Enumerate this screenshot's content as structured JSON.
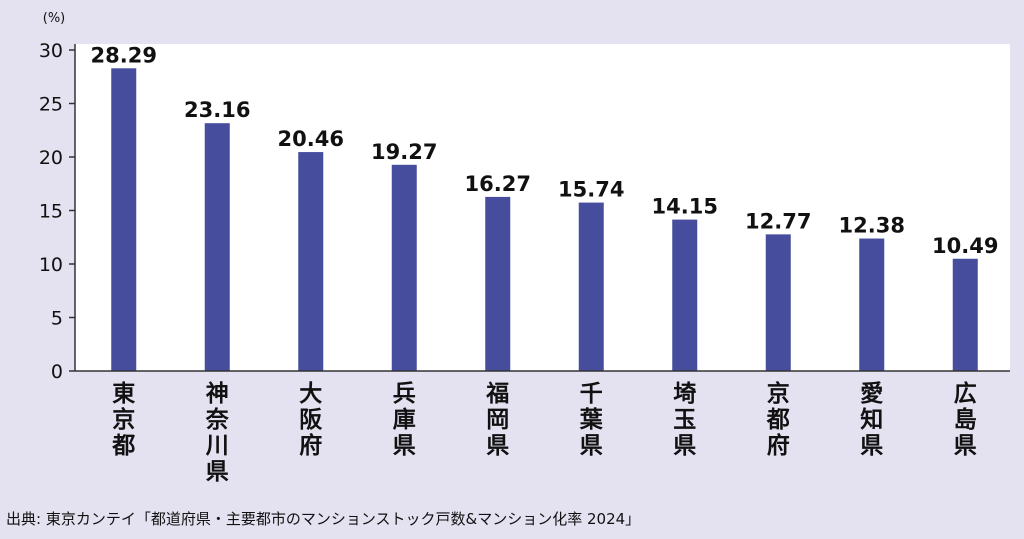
{
  "chart_data": {
    "type": "bar",
    "title": "",
    "xlabel": "",
    "ylabel": "(%)",
    "ylim": [
      0,
      30
    ],
    "yticks": [
      0,
      5,
      10,
      15,
      20,
      25,
      30
    ],
    "grid": false,
    "legend": "none",
    "categories": [
      "東京都",
      "神奈川県",
      "大阪府",
      "兵庫県",
      "福岡県",
      "千葉県",
      "埼玉県",
      "京都府",
      "愛知県",
      "広島県"
    ],
    "values": [
      28.29,
      23.16,
      20.46,
      19.27,
      16.27,
      15.74,
      14.15,
      12.77,
      12.38,
      10.49
    ],
    "value_labels": [
      "28.29",
      "23.16",
      "20.46",
      "19.27",
      "16.27",
      "15.74",
      "14.15",
      "12.77",
      "12.38",
      "10.49"
    ],
    "bar_color": "#454d9c",
    "plot_background": "#ffffff",
    "page_background": "#e4e1f0"
  },
  "source": "出典: 東京カンテイ「都道府県・主要都市のマンションストック戸数&マンション化率 2024」"
}
